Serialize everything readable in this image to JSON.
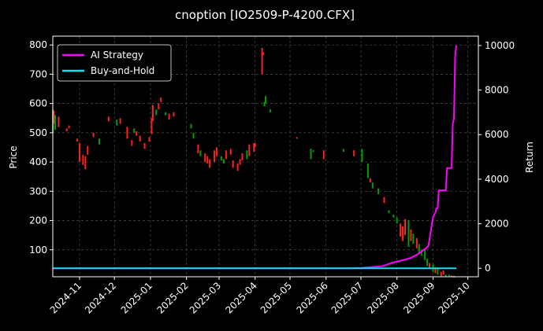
{
  "chart_data": {
    "type": "line",
    "title": "cnoption [IO2509-P-4200.CFX]",
    "xlabel": "",
    "ylabel": "Price",
    "ylabel_right": "Return",
    "x_ticks": [
      "2024-11",
      "2024-12",
      "2025-01",
      "2025-02",
      "2025-03",
      "2025-04",
      "2025-05",
      "2025-06",
      "2025-07",
      "2025-08",
      "2025-09",
      "2025-10"
    ],
    "x_range": [
      "2024-10-09",
      "2025-10-10"
    ],
    "y_ticks": [
      100,
      200,
      300,
      400,
      500,
      600,
      700,
      800
    ],
    "ylim": [
      8,
      830
    ],
    "y2_ticks": [
      0,
      2000,
      4000,
      6000,
      8000,
      10000
    ],
    "y2lim": [
      -380,
      10420
    ],
    "grid": true,
    "legend_placement": "top-left",
    "colors": {
      "strategy": "#ff00ff",
      "buyhold": "#00e5ee",
      "up": "#00a000",
      "down": "#ff2020"
    },
    "legend": [
      {
        "name": "AI Strategy",
        "color": "#ff00ff"
      },
      {
        "name": "Buy-and-Hold",
        "color": "#00e5ee"
      }
    ],
    "price_bars": [
      {
        "date": "2024-10-09",
        "low": 500,
        "high": 580,
        "dir": "up"
      },
      {
        "date": "2024-10-10",
        "low": 530,
        "high": 575,
        "dir": "down"
      },
      {
        "date": "2024-10-11",
        "low": 510,
        "high": 560,
        "dir": "up"
      },
      {
        "date": "2024-10-14",
        "low": 520,
        "high": 555,
        "dir": "down"
      },
      {
        "date": "2024-10-21",
        "low": 505,
        "high": 515,
        "dir": "down"
      },
      {
        "date": "2024-10-23",
        "low": 515,
        "high": 525,
        "dir": "down"
      },
      {
        "date": "2024-10-30",
        "low": 470,
        "high": 480,
        "dir": "down"
      },
      {
        "date": "2024-11-01",
        "low": 400,
        "high": 465,
        "dir": "down"
      },
      {
        "date": "2024-11-04",
        "low": 390,
        "high": 425,
        "dir": "down"
      },
      {
        "date": "2024-11-06",
        "low": 375,
        "high": 420,
        "dir": "down"
      },
      {
        "date": "2024-11-08",
        "low": 425,
        "high": 455,
        "dir": "down"
      },
      {
        "date": "2024-11-13",
        "low": 485,
        "high": 500,
        "dir": "down"
      },
      {
        "date": "2024-11-18",
        "low": 460,
        "high": 480,
        "dir": "up"
      },
      {
        "date": "2024-11-26",
        "low": 540,
        "high": 555,
        "dir": "down"
      },
      {
        "date": "2024-12-03",
        "low": 525,
        "high": 545,
        "dir": "up"
      },
      {
        "date": "2024-12-06",
        "low": 530,
        "high": 550,
        "dir": "down"
      },
      {
        "date": "2024-12-12",
        "low": 480,
        "high": 520,
        "dir": "down"
      },
      {
        "date": "2024-12-16",
        "low": 455,
        "high": 475,
        "dir": "down"
      },
      {
        "date": "2024-12-18",
        "low": 500,
        "high": 515,
        "dir": "up"
      },
      {
        "date": "2024-12-20",
        "low": 490,
        "high": 505,
        "dir": "down"
      },
      {
        "date": "2024-12-23",
        "low": 470,
        "high": 490,
        "dir": "down"
      },
      {
        "date": "2024-12-27",
        "low": 445,
        "high": 465,
        "dir": "down"
      },
      {
        "date": "2024-12-31",
        "low": 470,
        "high": 485,
        "dir": "down"
      },
      {
        "date": "2025-01-02",
        "low": 495,
        "high": 550,
        "dir": "down"
      },
      {
        "date": "2025-01-03",
        "low": 540,
        "high": 595,
        "dir": "down"
      },
      {
        "date": "2025-01-06",
        "low": 560,
        "high": 580,
        "dir": "up"
      },
      {
        "date": "2025-01-08",
        "low": 580,
        "high": 600,
        "dir": "down"
      },
      {
        "date": "2025-01-10",
        "low": 605,
        "high": 620,
        "dir": "down"
      },
      {
        "date": "2025-01-14",
        "low": 560,
        "high": 570,
        "dir": "up"
      },
      {
        "date": "2025-01-17",
        "low": 545,
        "high": 565,
        "dir": "down"
      },
      {
        "date": "2025-01-21",
        "low": 555,
        "high": 570,
        "dir": "down"
      },
      {
        "date": "2025-02-05",
        "low": 515,
        "high": 530,
        "dir": "up"
      },
      {
        "date": "2025-02-07",
        "low": 480,
        "high": 500,
        "dir": "up"
      },
      {
        "date": "2025-02-11",
        "low": 430,
        "high": 460,
        "dir": "down"
      },
      {
        "date": "2025-02-13",
        "low": 420,
        "high": 440,
        "dir": "up"
      },
      {
        "date": "2025-02-17",
        "low": 400,
        "high": 430,
        "dir": "down"
      },
      {
        "date": "2025-02-19",
        "low": 395,
        "high": 420,
        "dir": "down"
      },
      {
        "date": "2025-02-21",
        "low": 380,
        "high": 410,
        "dir": "down"
      },
      {
        "date": "2025-02-25",
        "low": 400,
        "high": 440,
        "dir": "down"
      },
      {
        "date": "2025-02-27",
        "low": 420,
        "high": 450,
        "dir": "down"
      },
      {
        "date": "2025-03-03",
        "low": 405,
        "high": 420,
        "dir": "up"
      },
      {
        "date": "2025-03-05",
        "low": 395,
        "high": 410,
        "dir": "up"
      },
      {
        "date": "2025-03-07",
        "low": 410,
        "high": 440,
        "dir": "down"
      },
      {
        "date": "2025-03-11",
        "low": 425,
        "high": 445,
        "dir": "down"
      },
      {
        "date": "2025-03-13",
        "low": 380,
        "high": 405,
        "dir": "down"
      },
      {
        "date": "2025-03-17",
        "low": 370,
        "high": 395,
        "dir": "down"
      },
      {
        "date": "2025-03-19",
        "low": 390,
        "high": 410,
        "dir": "down"
      },
      {
        "date": "2025-03-21",
        "low": 405,
        "high": 430,
        "dir": "down"
      },
      {
        "date": "2025-03-25",
        "low": 410,
        "high": 440,
        "dir": "up"
      },
      {
        "date": "2025-03-27",
        "low": 420,
        "high": 460,
        "dir": "down"
      },
      {
        "date": "2025-03-31",
        "low": 435,
        "high": 465,
        "dir": "down"
      },
      {
        "date": "2025-04-01",
        "low": 450,
        "high": 465,
        "dir": "down"
      },
      {
        "date": "2025-04-07",
        "low": 700,
        "high": 790,
        "dir": "down"
      },
      {
        "date": "2025-04-08",
        "low": 765,
        "high": 775,
        "dir": "down"
      },
      {
        "date": "2025-04-09",
        "low": 590,
        "high": 605,
        "dir": "up"
      },
      {
        "date": "2025-04-10",
        "low": 600,
        "high": 625,
        "dir": "up"
      },
      {
        "date": "2025-04-14",
        "low": 570,
        "high": 580,
        "dir": "up"
      },
      {
        "date": "2025-05-07",
        "low": 480,
        "high": 485,
        "dir": "down"
      },
      {
        "date": "2025-05-19",
        "low": 410,
        "high": 445,
        "dir": "up"
      },
      {
        "date": "2025-05-21",
        "low": 435,
        "high": 440,
        "dir": "up"
      },
      {
        "date": "2025-05-30",
        "low": 410,
        "high": 440,
        "dir": "down"
      },
      {
        "date": "2025-06-16",
        "low": 435,
        "high": 445,
        "dir": "up"
      },
      {
        "date": "2025-06-25",
        "low": 420,
        "high": 440,
        "dir": "down"
      },
      {
        "date": "2025-07-02",
        "low": 400,
        "high": 445,
        "dir": "up"
      },
      {
        "date": "2025-07-07",
        "low": 345,
        "high": 395,
        "dir": "up"
      },
      {
        "date": "2025-07-09",
        "low": 330,
        "high": 345,
        "dir": "down"
      },
      {
        "date": "2025-07-11",
        "low": 310,
        "high": 330,
        "dir": "up"
      },
      {
        "date": "2025-07-16",
        "low": 290,
        "high": 310,
        "dir": "up"
      },
      {
        "date": "2025-07-21",
        "low": 260,
        "high": 280,
        "dir": "down"
      },
      {
        "date": "2025-07-25",
        "low": 225,
        "high": 235,
        "dir": "up"
      },
      {
        "date": "2025-07-29",
        "low": 210,
        "high": 220,
        "dir": "up"
      },
      {
        "date": "2025-08-01",
        "low": 190,
        "high": 210,
        "dir": "up"
      },
      {
        "date": "2025-08-04",
        "low": 145,
        "high": 190,
        "dir": "down"
      },
      {
        "date": "2025-08-06",
        "low": 130,
        "high": 180,
        "dir": "down"
      },
      {
        "date": "2025-08-08",
        "low": 150,
        "high": 205,
        "dir": "down"
      },
      {
        "date": "2025-08-11",
        "low": 110,
        "high": 200,
        "dir": "up"
      },
      {
        "date": "2025-08-13",
        "low": 130,
        "high": 170,
        "dir": "down"
      },
      {
        "date": "2025-08-15",
        "low": 120,
        "high": 155,
        "dir": "up"
      },
      {
        "date": "2025-08-18",
        "low": 105,
        "high": 140,
        "dir": "down"
      },
      {
        "date": "2025-08-20",
        "low": 85,
        "high": 120,
        "dir": "up"
      },
      {
        "date": "2025-08-22",
        "low": 80,
        "high": 100,
        "dir": "up"
      },
      {
        "date": "2025-08-25",
        "low": 65,
        "high": 100,
        "dir": "up"
      },
      {
        "date": "2025-08-27",
        "low": 45,
        "high": 70,
        "dir": "up"
      },
      {
        "date": "2025-08-29",
        "low": 35,
        "high": 55,
        "dir": "down"
      },
      {
        "date": "2025-09-01",
        "low": 25,
        "high": 50,
        "dir": "up"
      },
      {
        "date": "2025-09-03",
        "low": 20,
        "high": 40,
        "dir": "down"
      },
      {
        "date": "2025-09-05",
        "low": 15,
        "high": 35,
        "dir": "up"
      },
      {
        "date": "2025-09-08",
        "low": 10,
        "high": 25,
        "dir": "down"
      },
      {
        "date": "2025-09-10",
        "low": 15,
        "high": 30,
        "dir": "down"
      },
      {
        "date": "2025-09-12",
        "low": 10,
        "high": 15,
        "dir": "up"
      },
      {
        "date": "2025-09-15",
        "low": 10,
        "high": 15,
        "dir": "up"
      },
      {
        "date": "2025-09-17",
        "low": 9,
        "high": 12,
        "dir": "down"
      },
      {
        "date": "2025-09-19",
        "low": 9,
        "high": 11,
        "dir": "up"
      }
    ],
    "series": [
      {
        "name": "AI Strategy",
        "axis": "right",
        "x": [
          "2024-10-09",
          "2025-06-20",
          "2025-07-01",
          "2025-07-10",
          "2025-07-20",
          "2025-07-28",
          "2025-08-05",
          "2025-08-12",
          "2025-08-18",
          "2025-08-22",
          "2025-08-26",
          "2025-08-28",
          "2025-09-01",
          "2025-09-03",
          "2025-09-04",
          "2025-09-05",
          "2025-09-06",
          "2025-09-08",
          "2025-09-09",
          "2025-09-12",
          "2025-09-13",
          "2025-09-15",
          "2025-09-16",
          "2025-09-17",
          "2025-09-18",
          "2025-09-19",
          "2025-09-20",
          "2025-09-21"
        ],
        "values": [
          0,
          0,
          20,
          50,
          100,
          250,
          350,
          450,
          600,
          750,
          900,
          1000,
          2300,
          2500,
          2700,
          2700,
          3500,
          3500,
          3500,
          3500,
          4500,
          4500,
          4500,
          4500,
          6500,
          6700,
          9500,
          10000
        ]
      },
      {
        "name": "Buy-and-Hold",
        "axis": "right",
        "x": [
          "2024-10-09",
          "2025-09-21"
        ],
        "values": [
          0,
          0
        ]
      }
    ]
  }
}
